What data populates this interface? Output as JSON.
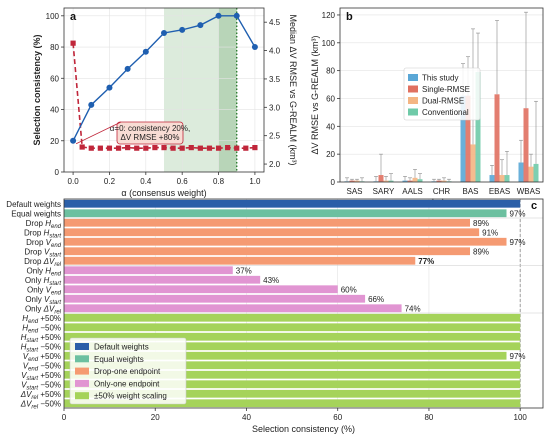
{
  "colors": {
    "blue_line": "#1f5fb0",
    "red_line": "#c0263a",
    "shade_light": "#dcebdc",
    "shade_dark": "#b8d5b8",
    "dotted_green": "#2e7d32",
    "this_study": "#5aa7d6",
    "single_rmse": "#e07060",
    "dual_rmse": "#f4b583",
    "conventional": "#6fcaa8",
    "default_weights": "#2b5fa8",
    "equal_weights": "#6cc0a0",
    "drop_one": "#f59a72",
    "only_one": "#e195d2",
    "scaling": "#a5d35a",
    "highlight_red": "#d62728"
  },
  "chart_data": [
    {
      "panel": "a",
      "type": "line",
      "xlabel": "α (consensus weight)",
      "ylabel_left": "Selection consistency (%)",
      "ylabel_right": "Median ΔV RMSE vs G-REALM (km³)",
      "xlim": [
        -0.05,
        1.05
      ],
      "ylim_left": [
        0,
        105
      ],
      "ylim_right": [
        1.86,
        4.75
      ],
      "x_ticks": [
        "0.0",
        "0.2",
        "0.4",
        "0.6",
        "0.8",
        "1.0"
      ],
      "y_ticks_left": [
        "0",
        "20",
        "40",
        "60",
        "80",
        "100"
      ],
      "y_ticks_right": [
        "2.0",
        "2.5",
        "3.0",
        "3.5",
        "4.0",
        "4.5"
      ],
      "shaded_ranges": [
        [
          0.5,
          0.9
        ],
        [
          0.8,
          0.9
        ]
      ],
      "vline": 0.9,
      "series": [
        {
          "axis": "left",
          "x": [
            0.0,
            0.1,
            0.2,
            0.3,
            0.4,
            0.5,
            0.6,
            0.7,
            0.8,
            0.9,
            1.0
          ],
          "values": [
            20,
            43,
            54,
            66,
            77,
            89,
            91,
            94,
            100,
            100,
            80
          ]
        },
        {
          "axis": "right",
          "x": [
            0.0,
            0.05,
            0.1,
            0.15,
            0.2,
            0.25,
            0.3,
            0.35,
            0.4,
            0.45,
            0.5,
            0.55,
            0.6,
            0.65,
            0.7,
            0.75,
            0.8,
            0.85,
            0.9,
            0.95,
            1.0
          ],
          "values": [
            4.13,
            2.3,
            2.28,
            2.28,
            2.28,
            2.28,
            2.29,
            2.28,
            2.28,
            2.29,
            2.29,
            2.28,
            2.28,
            2.29,
            2.28,
            2.28,
            2.28,
            2.29,
            2.28,
            2.28,
            2.29
          ]
        }
      ],
      "annotation": [
        "α=0: consistency 20%,",
        "ΔV RMSE +80%"
      ]
    },
    {
      "panel": "b",
      "type": "bar",
      "xlabel": "Lake",
      "ylabel": "ΔV RMSE vs G-REALM (km³)",
      "ylim": [
        0,
        125
      ],
      "y_ticks": [
        "0",
        "20",
        "40",
        "60",
        "80",
        "100",
        "120"
      ],
      "categories": [
        "SAS",
        "SARY",
        "AALS",
        "CHR",
        "BAS",
        "EBAS",
        "WBAS"
      ],
      "series": [
        {
          "name": "This study",
          "values": [
            0.5,
            0.5,
            1,
            0.5,
            62,
            5,
            14
          ],
          "err_hi": [
            3,
            4,
            4,
            2,
            85,
            12,
            30
          ]
        },
        {
          "name": "Single-RMSE",
          "values": [
            1,
            5,
            1,
            1,
            62,
            63,
            53
          ],
          "err_hi": [
            2,
            20,
            3,
            2,
            90,
            116,
            122
          ]
        },
        {
          "name": "Dual-RMSE",
          "values": [
            1,
            1,
            3,
            1,
            27,
            5,
            11
          ],
          "err_hi": [
            2,
            4,
            9,
            3,
            110,
            16,
            20
          ]
        },
        {
          "name": "Conventional",
          "values": [
            0.5,
            1,
            2,
            0.5,
            79,
            5,
            13
          ],
          "err_hi": [
            3,
            6,
            6,
            2,
            107,
            22,
            58
          ]
        }
      ]
    },
    {
      "panel": "c",
      "type": "bar",
      "orientation": "horizontal",
      "xlabel": "Selection consistency (%)",
      "xlim": [
        0,
        105
      ],
      "x_ticks": [
        "0",
        "20",
        "40",
        "60",
        "80",
        "100"
      ],
      "legend": [
        {
          "name": "Default weights",
          "color_key": "default_weights"
        },
        {
          "name": "Equal weights",
          "color_key": "equal_weights"
        },
        {
          "name": "Drop-one endpoint",
          "color_key": "drop_one"
        },
        {
          "name": "Only-one endpoint",
          "color_key": "only_one"
        },
        {
          "name": "±50% weight scaling",
          "color_key": "scaling"
        }
      ],
      "rows": [
        {
          "label": "Default weights",
          "value": 100,
          "group": "default_weights",
          "value_label": ""
        },
        {
          "label": "Equal weights",
          "value": 97,
          "group": "equal_weights",
          "value_label": "97%"
        },
        {
          "label": "Drop H_end",
          "value": 89,
          "group": "drop_one",
          "value_label": "89%"
        },
        {
          "label": "Drop H_start",
          "value": 91,
          "group": "drop_one",
          "value_label": "91%"
        },
        {
          "label": "Drop V_end",
          "value": 97,
          "group": "drop_one",
          "value_label": "97%"
        },
        {
          "label": "Drop V_start",
          "value": 89,
          "group": "drop_one",
          "value_label": "89%"
        },
        {
          "label": "Drop ΔV_rel",
          "value": 77,
          "group": "drop_one",
          "value_label": "77%",
          "highlight": true
        },
        {
          "label": "Only H_end",
          "value": 37,
          "group": "only_one",
          "value_label": "37%"
        },
        {
          "label": "Only H_start",
          "value": 43,
          "group": "only_one",
          "value_label": "43%"
        },
        {
          "label": "Only V_end",
          "value": 60,
          "group": "only_one",
          "value_label": "60%"
        },
        {
          "label": "Only V_start",
          "value": 66,
          "group": "only_one",
          "value_label": "66%"
        },
        {
          "label": "Only ΔV_rel",
          "value": 74,
          "group": "only_one",
          "value_label": "74%"
        },
        {
          "label": "H_end +50%",
          "value": 100,
          "group": "scaling",
          "value_label": ""
        },
        {
          "label": "H_end −50%",
          "value": 100,
          "group": "scaling",
          "value_label": ""
        },
        {
          "label": "H_start +50%",
          "value": 100,
          "group": "scaling",
          "value_label": ""
        },
        {
          "label": "H_start −50%",
          "value": 100,
          "group": "scaling",
          "value_label": ""
        },
        {
          "label": "V_end +50%",
          "value": 97,
          "group": "scaling",
          "value_label": "97%"
        },
        {
          "label": "V_end −50%",
          "value": 100,
          "group": "scaling",
          "value_label": ""
        },
        {
          "label": "V_start +50%",
          "value": 100,
          "group": "scaling",
          "value_label": ""
        },
        {
          "label": "V_start −50%",
          "value": 100,
          "group": "scaling",
          "value_label": ""
        },
        {
          "label": "ΔV_rel +50%",
          "value": 100,
          "group": "scaling",
          "value_label": ""
        },
        {
          "label": "ΔV_rel −50%",
          "value": 100,
          "group": "scaling",
          "value_label": ""
        }
      ]
    }
  ]
}
